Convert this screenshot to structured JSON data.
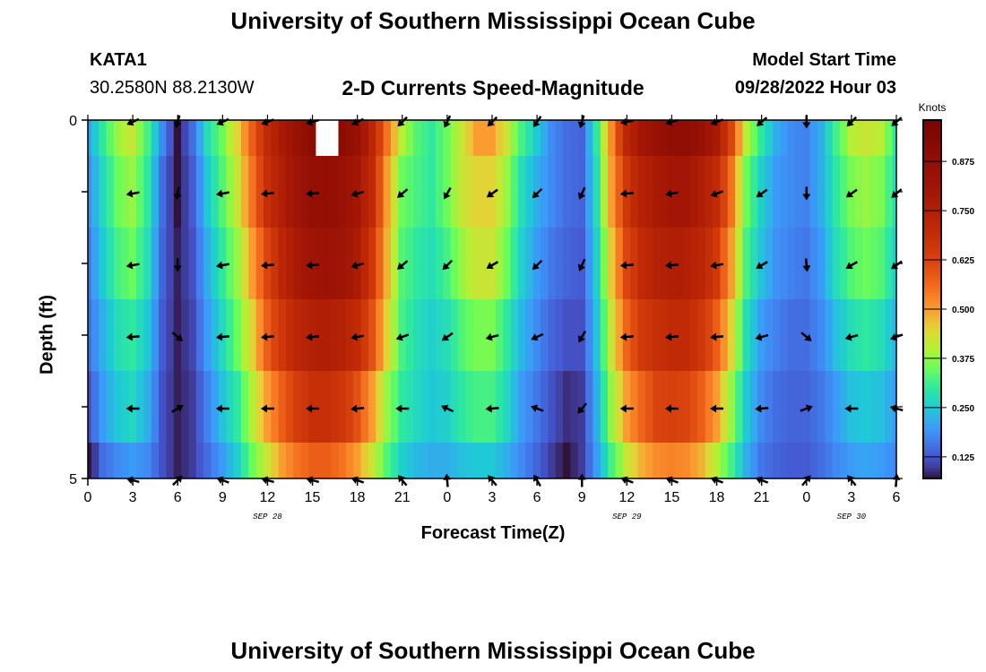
{
  "header": {
    "title": "University of Southern Mississippi Ocean Cube",
    "station": "KATA1",
    "coordinates": "30.2580N  88.2130W",
    "subtitle": "2-D Currents Speed-Magnitude",
    "model_start_label": "Model Start Time",
    "model_start_value": "09/28/2022 Hour 03"
  },
  "footer": {
    "title": "University of Southern Mississippi Ocean Cube"
  },
  "chart_data": {
    "type": "heatmap",
    "title": "2-D Currents Speed-Magnitude",
    "xlabel": "Forecast Time(Z)",
    "ylabel": "Depth (ft)",
    "x_hours": [
      0,
      1,
      2,
      3,
      4,
      5,
      6,
      7,
      8,
      9,
      10,
      11,
      12,
      13,
      14,
      15,
      16,
      17,
      18,
      19,
      20,
      21,
      22,
      23,
      24,
      25,
      26,
      27,
      28,
      29,
      30,
      31,
      32,
      33,
      34,
      35,
      36,
      37,
      38,
      39,
      40,
      41,
      42,
      43,
      44,
      45,
      46,
      47,
      48,
      49,
      50,
      51,
      52,
      53,
      54
    ],
    "xlim": [
      0,
      54
    ],
    "x_tick_hours": [
      0,
      3,
      6,
      9,
      12,
      15,
      18,
      21,
      24,
      27,
      30,
      33,
      36,
      39,
      42,
      45,
      48,
      51,
      54
    ],
    "x_tick_labels": [
      "0",
      "3",
      "6",
      "9",
      "12",
      "15",
      "18",
      "21",
      "0",
      "3",
      "6",
      "9",
      "12",
      "15",
      "18",
      "21",
      "0",
      "3",
      "6"
    ],
    "date_labels": [
      {
        "text": "SEP 28",
        "hour": 12
      },
      {
        "text": "SEP 29",
        "hour": 36
      },
      {
        "text": "SEP 30",
        "hour": 51
      }
    ],
    "depths_ft": [
      0,
      1,
      2,
      3,
      4,
      5
    ],
    "ylim": [
      0,
      5
    ],
    "y_tick_labels": [
      {
        "depth": 0,
        "label": "0"
      },
      {
        "depth": 5,
        "label": "5"
      }
    ],
    "speed_knots": [
      [
        0.2,
        0.3,
        0.38,
        0.42,
        0.32,
        0.18,
        0.07,
        0.15,
        0.28,
        0.35,
        0.45,
        0.58,
        0.7,
        0.78,
        0.85,
        0.9,
        null,
        0.9,
        0.85,
        0.72,
        0.55,
        0.4,
        0.33,
        0.3,
        0.35,
        0.42,
        0.5,
        0.5,
        0.42,
        0.32,
        0.25,
        0.18,
        0.15,
        0.14,
        0.3,
        0.52,
        0.72,
        0.8,
        0.85,
        0.88,
        0.88,
        0.85,
        0.78,
        0.62,
        0.4,
        0.3,
        0.22,
        0.18,
        0.17,
        0.22,
        0.32,
        0.4,
        0.42,
        0.4,
        0.3
      ],
      [
        0.18,
        0.27,
        0.35,
        0.38,
        0.3,
        0.15,
        0.07,
        0.13,
        0.25,
        0.33,
        0.42,
        0.55,
        0.68,
        0.76,
        0.82,
        0.86,
        0.87,
        0.85,
        0.8,
        0.7,
        0.5,
        0.35,
        0.32,
        0.3,
        0.35,
        0.42,
        0.45,
        0.45,
        0.38,
        0.28,
        0.22,
        0.18,
        0.15,
        0.14,
        0.28,
        0.5,
        0.66,
        0.74,
        0.78,
        0.8,
        0.8,
        0.76,
        0.7,
        0.55,
        0.35,
        0.26,
        0.2,
        0.18,
        0.17,
        0.22,
        0.3,
        0.36,
        0.38,
        0.36,
        0.28
      ],
      [
        0.16,
        0.25,
        0.32,
        0.35,
        0.28,
        0.14,
        0.08,
        0.12,
        0.22,
        0.3,
        0.38,
        0.5,
        0.62,
        0.72,
        0.78,
        0.82,
        0.83,
        0.82,
        0.77,
        0.66,
        0.48,
        0.33,
        0.3,
        0.28,
        0.32,
        0.38,
        0.42,
        0.42,
        0.35,
        0.26,
        0.2,
        0.16,
        0.14,
        0.13,
        0.26,
        0.46,
        0.62,
        0.7,
        0.74,
        0.76,
        0.75,
        0.72,
        0.65,
        0.5,
        0.32,
        0.24,
        0.19,
        0.17,
        0.16,
        0.2,
        0.28,
        0.33,
        0.35,
        0.33,
        0.26
      ],
      [
        0.15,
        0.22,
        0.28,
        0.3,
        0.25,
        0.13,
        0.08,
        0.11,
        0.2,
        0.27,
        0.35,
        0.45,
        0.58,
        0.66,
        0.72,
        0.75,
        0.76,
        0.74,
        0.7,
        0.6,
        0.45,
        0.32,
        0.28,
        0.26,
        0.28,
        0.33,
        0.36,
        0.36,
        0.3,
        0.23,
        0.18,
        0.14,
        0.12,
        0.12,
        0.24,
        0.42,
        0.57,
        0.65,
        0.68,
        0.7,
        0.7,
        0.66,
        0.58,
        0.45,
        0.28,
        0.2,
        0.17,
        0.15,
        0.15,
        0.18,
        0.24,
        0.28,
        0.3,
        0.28,
        0.23
      ],
      [
        0.12,
        0.2,
        0.25,
        0.27,
        0.22,
        0.12,
        0.08,
        0.1,
        0.17,
        0.24,
        0.3,
        0.4,
        0.5,
        0.58,
        0.64,
        0.68,
        0.68,
        0.66,
        0.6,
        0.5,
        0.38,
        0.3,
        0.27,
        0.25,
        0.26,
        0.3,
        0.32,
        0.32,
        0.27,
        0.2,
        0.16,
        0.12,
        0.09,
        0.1,
        0.22,
        0.38,
        0.5,
        0.57,
        0.62,
        0.63,
        0.62,
        0.58,
        0.5,
        0.38,
        0.25,
        0.18,
        0.15,
        0.14,
        0.14,
        0.16,
        0.2,
        0.24,
        0.25,
        0.24,
        0.2
      ],
      [
        0.05,
        0.15,
        0.18,
        0.2,
        0.18,
        0.12,
        0.08,
        0.1,
        0.15,
        0.2,
        0.26,
        0.35,
        0.42,
        0.5,
        0.55,
        0.58,
        0.58,
        0.55,
        0.5,
        0.42,
        0.33,
        0.26,
        0.23,
        0.22,
        0.22,
        0.24,
        0.25,
        0.25,
        0.22,
        0.18,
        0.14,
        0.1,
        0.07,
        0.1,
        0.2,
        0.32,
        0.42,
        0.48,
        0.52,
        0.53,
        0.52,
        0.48,
        0.4,
        0.32,
        0.22,
        0.16,
        0.14,
        0.13,
        0.13,
        0.15,
        0.18,
        0.2,
        0.21,
        0.2,
        0.18
      ]
    ],
    "vector_hours": [
      3,
      6,
      9,
      12,
      15,
      18,
      21,
      24,
      27,
      30,
      33,
      36,
      39,
      42,
      45,
      48,
      51,
      54
    ],
    "vector_direction_deg": [
      [
        245,
        195,
        245,
        250,
        255,
        245,
        225,
        205,
        225,
        215,
        195,
        260,
        255,
        250,
        230,
        180,
        225,
        230
      ],
      [
        260,
        190,
        260,
        265,
        265,
        255,
        230,
        210,
        235,
        225,
        205,
        265,
        260,
        250,
        235,
        180,
        235,
        230
      ],
      [
        260,
        180,
        260,
        265,
        265,
        255,
        230,
        225,
        240,
        225,
        205,
        265,
        265,
        260,
        240,
        175,
        240,
        235
      ],
      [
        265,
        130,
        265,
        265,
        265,
        260,
        250,
        235,
        255,
        245,
        210,
        265,
        265,
        265,
        255,
        130,
        255,
        250
      ],
      [
        270,
        60,
        270,
        270,
        270,
        265,
        270,
        295,
        265,
        290,
        220,
        270,
        270,
        270,
        265,
        70,
        270,
        285
      ],
      [
        285,
        45,
        290,
        285,
        285,
        290,
        320,
        355,
        320,
        330,
        0,
        290,
        290,
        290,
        290,
        40,
        320,
        5
      ]
    ],
    "colorbar": {
      "label": "Knots",
      "range": [
        0.07,
        0.98
      ],
      "ticks": [
        0.125,
        0.25,
        0.375,
        0.5,
        0.625,
        0.75,
        0.875
      ],
      "tick_labels": [
        "0.125",
        "0.250",
        "0.375",
        "0.500",
        "0.625",
        "0.750",
        "0.875"
      ],
      "stops": [
        [
          0.07,
          "#30123b"
        ],
        [
          0.1,
          "#3f3d9c"
        ],
        [
          0.125,
          "#4556cf"
        ],
        [
          0.17,
          "#4281f0"
        ],
        [
          0.2,
          "#3b9bf8"
        ],
        [
          0.25,
          "#1fcad6"
        ],
        [
          0.3,
          "#2ee8a0"
        ],
        [
          0.35,
          "#6afc5a"
        ],
        [
          0.4,
          "#b6f034"
        ],
        [
          0.45,
          "#e2d436"
        ],
        [
          0.5,
          "#fb9c31"
        ],
        [
          0.56,
          "#f36a1d"
        ],
        [
          0.625,
          "#d8420e"
        ],
        [
          0.7,
          "#c02a06"
        ],
        [
          0.8,
          "#a31605"
        ],
        [
          0.9,
          "#8c0c04"
        ],
        [
          0.98,
          "#7a0403"
        ]
      ]
    },
    "missing_color": "#ffffff"
  }
}
